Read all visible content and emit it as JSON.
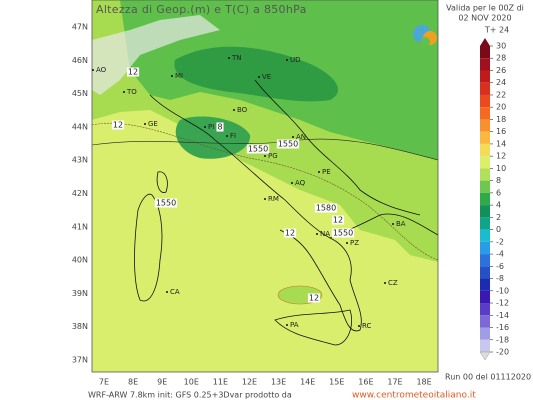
{
  "header": {
    "title": "Altezza di Geop.(m) e T(C) a 850hPa",
    "valid_line1": "Valida per le 00Z di",
    "valid_line2": "02 NOV 2020",
    "forecast": "T+ 24"
  },
  "legend": {
    "levels": [
      30,
      28,
      26,
      24,
      22,
      20,
      18,
      16,
      14,
      12,
      10,
      8,
      6,
      4,
      2,
      0,
      -2,
      -4,
      -6,
      -8,
      -10,
      -12,
      -14,
      -16,
      -18,
      -20
    ],
    "colors": [
      "#7a0a1a",
      "#a0101e",
      "#c01a1a",
      "#d8301e",
      "#ec4a1e",
      "#f46a22",
      "#f89030",
      "#f9b840",
      "#f2dc5a",
      "#dcee6a",
      "#b2e05a",
      "#6cc84e",
      "#2faa46",
      "#12905a",
      "#0fa58a",
      "#1cbcd0",
      "#2a9be6",
      "#2a72dc",
      "#2450c8",
      "#1a2cb0",
      "#3a18b4",
      "#5a3cc8",
      "#7c68d8",
      "#a09ce6",
      "#c8c8ee"
    ]
  },
  "axes": {
    "lat_labels": [
      "47N",
      "46N",
      "45N",
      "44N",
      "43N",
      "42N",
      "41N",
      "40N",
      "39N",
      "38N",
      "37N"
    ],
    "lon_labels": [
      "7E",
      "8E",
      "9E",
      "10E",
      "11E",
      "12E",
      "13E",
      "14E",
      "15E",
      "16E",
      "17E",
      "18E"
    ]
  },
  "cities": [
    "AO",
    "TO",
    "MI",
    "TN",
    "VE",
    "UD",
    "GE",
    "BO",
    "FI",
    "PI",
    "AN",
    "PG",
    "AQ",
    "RM",
    "PE",
    "NA",
    "BA",
    "PZ",
    "CA",
    "PA",
    "RC",
    "CZ"
  ],
  "contour_labels": [
    "12",
    "12",
    "8",
    "1550",
    "1550",
    "1550",
    "1580",
    "1550",
    "12",
    "12",
    "12"
  ],
  "footer": {
    "model": "WRF-ARW 7.8km init: GFS 0.25+3Dvar prodotto da",
    "site": "www.centrometeoitaliano.it",
    "run": "Run 00 del 01112020"
  }
}
